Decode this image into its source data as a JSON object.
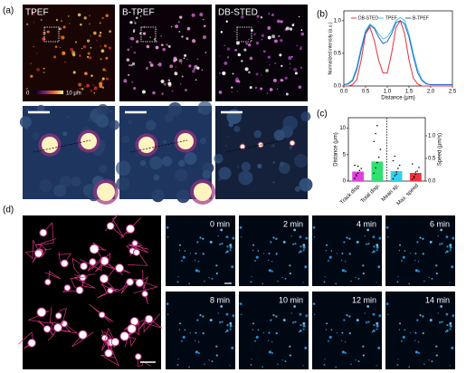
{
  "panels": {
    "a": "(a)",
    "b": "(b)",
    "c": "(c)",
    "d": "(d)"
  },
  "images": {
    "top": [
      "TPEF",
      "B-TPEF",
      "DB-STED"
    ],
    "colorbar": [
      "0",
      "10 μm"
    ]
  },
  "frames": [
    "0 min",
    "2 min",
    "4 min",
    "6 min",
    "8 min",
    "10 min",
    "12 min",
    "14 min"
  ],
  "chart_data": [
    {
      "type": "line",
      "xlabel": "Distance (μm)",
      "ylabel": "Normalized intensity (a.u.)",
      "x": [
        0.0,
        0.1,
        0.2,
        0.3,
        0.4,
        0.5,
        0.6,
        0.7,
        0.8,
        0.9,
        1.0,
        1.1,
        1.2,
        1.3,
        1.4,
        1.5,
        1.6,
        1.7,
        1.8,
        1.9,
        2.0,
        2.1,
        2.2,
        2.3,
        2.4,
        2.5
      ],
      "series": [
        {
          "name": "DB-STED",
          "color": "#e0343c",
          "values": [
            0,
            0,
            0.02,
            0.1,
            0.4,
            0.8,
            0.9,
            0.7,
            0.4,
            0.2,
            0.2,
            0.5,
            0.9,
            1.0,
            0.8,
            0.4,
            0.12,
            0.03,
            0,
            0,
            0,
            0,
            0,
            0,
            0,
            0
          ]
        },
        {
          "name": "TPEF",
          "color": "#3fc6e0",
          "values": [
            0.02,
            0.04,
            0.1,
            0.3,
            0.6,
            0.85,
            0.95,
            0.9,
            0.8,
            0.72,
            0.75,
            0.85,
            1.0,
            1.05,
            1.0,
            0.8,
            0.5,
            0.25,
            0.1,
            0.04,
            0.02,
            0.02,
            0.02,
            0.02,
            0.02,
            0.02
          ]
        },
        {
          "name": "B-TPEF",
          "color": "#2a62c8",
          "values": [
            0.02,
            0.03,
            0.08,
            0.25,
            0.55,
            0.82,
            0.93,
            0.88,
            0.75,
            0.65,
            0.68,
            0.8,
            0.97,
            1.0,
            0.95,
            0.75,
            0.45,
            0.2,
            0.08,
            0.03,
            0.02,
            0.02,
            0.02,
            0.02,
            0.02,
            0.02
          ]
        }
      ],
      "xlim": [
        0,
        2.5
      ],
      "xticks": [
        {
          "value": 0,
          "label": "0.0"
        },
        0.5,
        {
          "value": 1,
          "label": "1.0"
        },
        1.5,
        {
          "value": 2,
          "label": "2.0"
        },
        2.5
      ],
      "ylim": [
        0,
        1.15
      ],
      "yticks": [
        {
          "value": 0,
          "label": "0.0"
        },
        0.5,
        {
          "value": 1,
          "label": "1.0"
        }
      ],
      "legend": "top"
    },
    {
      "type": "bar",
      "ylabel": "Distance (μm)",
      "y2label": "Speed (μm/s)",
      "categories": [
        "Track disp.",
        "Total disp.",
        "Mean sp.",
        "Max. speed"
      ],
      "values": [
        1.8,
        3.7,
        0.22,
        0.18
      ],
      "colors": [
        "#e040e0",
        "#30e070",
        "#30d0f0",
        "#f03040"
      ],
      "value_axes": [
        "y",
        "y",
        "y2",
        "y2"
      ],
      "points": [
        [
          0.5,
          1.0,
          1.5,
          2.0,
          2.4,
          3.0,
          1.2,
          2.8
        ],
        [
          1.5,
          2.5,
          3.5,
          4.5,
          6.0,
          7.5,
          9.0,
          10.5
        ],
        [
          0.05,
          0.12,
          0.2,
          0.28,
          0.35,
          0.45,
          0.55,
          0.15
        ],
        [
          0.04,
          0.1,
          0.15,
          0.22,
          0.3,
          0.38,
          0.08,
          0.2
        ]
      ],
      "ylim": [
        0,
        12
      ],
      "yticks": [
        0,
        5,
        10
      ],
      "y2lim": [
        0,
        1.4
      ],
      "y2ticks": [
        {
          "value": 0,
          "label": "0.0"
        },
        0.5,
        {
          "value": 1,
          "label": "1.0"
        }
      ]
    }
  ]
}
